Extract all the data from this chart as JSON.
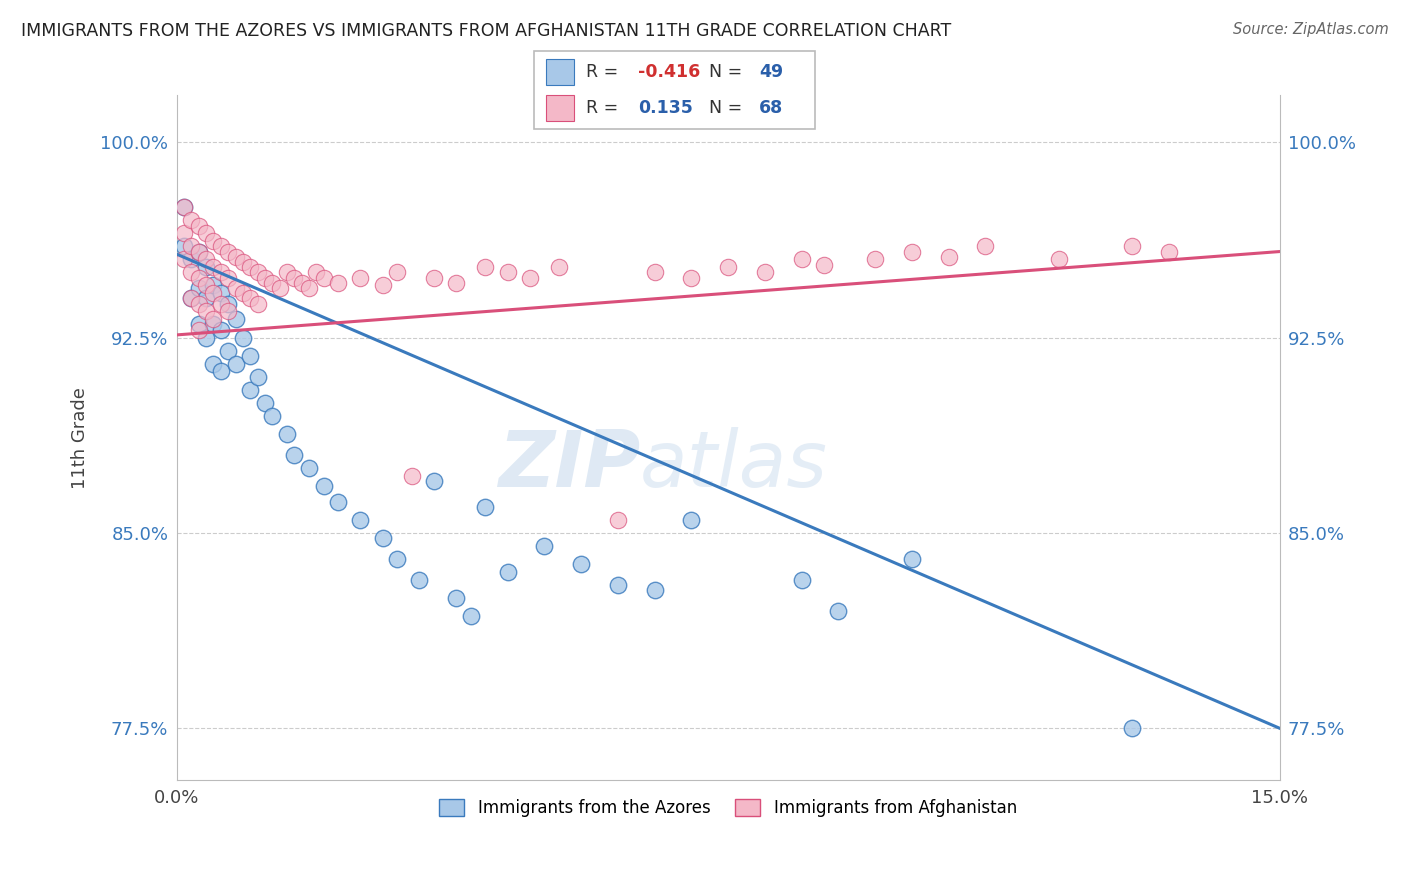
{
  "title": "IMMIGRANTS FROM THE AZORES VS IMMIGRANTS FROM AFGHANISTAN 11TH GRADE CORRELATION CHART",
  "source": "Source: ZipAtlas.com",
  "ylabel": "11th Grade",
  "x_min": 0.0,
  "x_max": 0.15,
  "y_min": 0.755,
  "y_max": 1.018,
  "y_ticks": [
    0.775,
    0.85,
    0.925,
    1.0
  ],
  "y_tick_labels": [
    "77.5%",
    "85.0%",
    "92.5%",
    "100.0%"
  ],
  "color_azores": "#a8c8e8",
  "color_afghanistan": "#f4b8c8",
  "color_azores_line": "#3a7abd",
  "color_afghanistan_line": "#d94f7a",
  "azores_x": [
    0.001,
    0.001,
    0.002,
    0.002,
    0.003,
    0.003,
    0.003,
    0.004,
    0.004,
    0.004,
    0.005,
    0.005,
    0.005,
    0.006,
    0.006,
    0.006,
    0.007,
    0.007,
    0.008,
    0.008,
    0.009,
    0.01,
    0.01,
    0.011,
    0.012,
    0.013,
    0.015,
    0.016,
    0.018,
    0.02,
    0.022,
    0.025,
    0.028,
    0.03,
    0.033,
    0.035,
    0.038,
    0.04,
    0.042,
    0.045,
    0.05,
    0.055,
    0.06,
    0.065,
    0.07,
    0.085,
    0.09,
    0.1,
    0.13
  ],
  "azores_y": [
    0.975,
    0.96,
    0.955,
    0.94,
    0.958,
    0.944,
    0.93,
    0.952,
    0.94,
    0.925,
    0.945,
    0.93,
    0.915,
    0.942,
    0.928,
    0.912,
    0.938,
    0.92,
    0.932,
    0.915,
    0.925,
    0.918,
    0.905,
    0.91,
    0.9,
    0.895,
    0.888,
    0.88,
    0.875,
    0.868,
    0.862,
    0.855,
    0.848,
    0.84,
    0.832,
    0.87,
    0.825,
    0.818,
    0.86,
    0.835,
    0.845,
    0.838,
    0.83,
    0.828,
    0.855,
    0.832,
    0.82,
    0.84,
    0.775
  ],
  "afghanistan_x": [
    0.001,
    0.001,
    0.001,
    0.002,
    0.002,
    0.002,
    0.002,
    0.003,
    0.003,
    0.003,
    0.003,
    0.003,
    0.004,
    0.004,
    0.004,
    0.004,
    0.005,
    0.005,
    0.005,
    0.005,
    0.006,
    0.006,
    0.006,
    0.007,
    0.007,
    0.007,
    0.008,
    0.008,
    0.009,
    0.009,
    0.01,
    0.01,
    0.011,
    0.011,
    0.012,
    0.013,
    0.014,
    0.015,
    0.016,
    0.017,
    0.018,
    0.019,
    0.02,
    0.022,
    0.025,
    0.028,
    0.03,
    0.032,
    0.035,
    0.038,
    0.042,
    0.045,
    0.048,
    0.052,
    0.06,
    0.065,
    0.07,
    0.075,
    0.08,
    0.085,
    0.088,
    0.095,
    0.1,
    0.105,
    0.11,
    0.12,
    0.13,
    0.135
  ],
  "afghanistan_y": [
    0.975,
    0.965,
    0.955,
    0.97,
    0.96,
    0.95,
    0.94,
    0.968,
    0.958,
    0.948,
    0.938,
    0.928,
    0.965,
    0.955,
    0.945,
    0.935,
    0.962,
    0.952,
    0.942,
    0.932,
    0.96,
    0.95,
    0.938,
    0.958,
    0.948,
    0.935,
    0.956,
    0.944,
    0.954,
    0.942,
    0.952,
    0.94,
    0.95,
    0.938,
    0.948,
    0.946,
    0.944,
    0.95,
    0.948,
    0.946,
    0.944,
    0.95,
    0.948,
    0.946,
    0.948,
    0.945,
    0.95,
    0.872,
    0.948,
    0.946,
    0.952,
    0.95,
    0.948,
    0.952,
    0.855,
    0.95,
    0.948,
    0.952,
    0.95,
    0.955,
    0.953,
    0.955,
    0.958,
    0.956,
    0.96,
    0.955,
    0.96,
    0.958
  ]
}
